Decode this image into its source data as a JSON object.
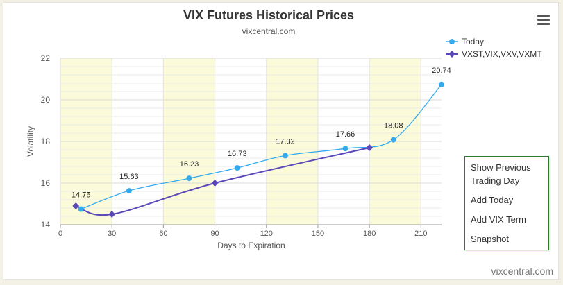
{
  "chart_data": {
    "type": "line",
    "title": "VIX Futures Historical Prices",
    "subtitle": "vixcentral.com",
    "xlabel": "Days to Expiration",
    "ylabel": "Volatility",
    "xlim": [
      0,
      222
    ],
    "ylim": [
      14,
      22
    ],
    "x_ticks": [
      0,
      30,
      60,
      90,
      120,
      150,
      180,
      210
    ],
    "y_ticks": [
      14,
      16,
      18,
      20,
      22
    ],
    "grid": true,
    "legend_position": "top-right",
    "series": [
      {
        "name": "Today",
        "color": "#33aaee",
        "marker": "circle",
        "x": [
          12,
          40,
          75,
          103,
          131,
          166,
          194,
          222
        ],
        "y": [
          14.75,
          15.63,
          16.23,
          16.73,
          17.32,
          17.66,
          18.08,
          20.74
        ],
        "labels": [
          "14.75",
          "15.63",
          "16.23",
          "16.73",
          "17.32",
          "17.66",
          "18.08",
          "20.74"
        ]
      },
      {
        "name": "VXST,VIX,VXV,VXMT",
        "color": "#5a48b8",
        "marker": "diamond",
        "x": [
          9,
          30,
          90,
          180
        ],
        "y": [
          14.9,
          14.5,
          16.0,
          17.7
        ]
      }
    ]
  },
  "menu": {
    "items": [
      {
        "label": "Show Previous Trading Day"
      },
      {
        "label": "Add Today"
      },
      {
        "label": "Add VIX Term"
      },
      {
        "label": "Snapshot"
      }
    ]
  },
  "credit": "vixcentral.com"
}
